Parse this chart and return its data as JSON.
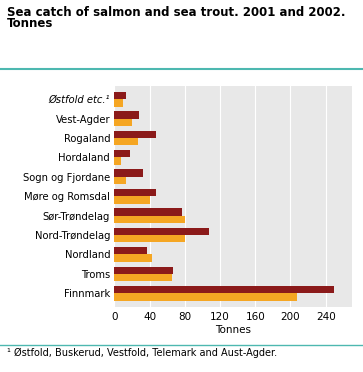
{
  "title_line1": "Sea catch of salmon and sea trout. 2001 and 2002.",
  "title_line2": "Tonnes",
  "categories": [
    "Østfold etc.¹",
    "Vest-Agder",
    "Rogaland",
    "Hordaland",
    "Sogn og Fjordane",
    "Møre og Romsdal",
    "Sør-Trøndelag",
    "Nord-Trøndelag",
    "Nordland",
    "Troms",
    "Finnmark"
  ],
  "values_2001": [
    13,
    28,
    47,
    18,
    33,
    47,
    77,
    107,
    37,
    67,
    250
  ],
  "values_2002": [
    10,
    20,
    27,
    8,
    13,
    40,
    80,
    80,
    43,
    65,
    207
  ],
  "color_2001": "#8B1A1A",
  "color_2002": "#F5A623",
  "xlabel": "Tonnes",
  "xlim": [
    0,
    270
  ],
  "xticks": [
    0,
    40,
    80,
    120,
    160,
    200,
    240
  ],
  "footnote": "¹ Østfold, Buskerud, Vestfold, Telemark and Aust-Agder.",
  "plot_bg_color": "#e8e8e8",
  "grid_color": "#ffffff",
  "teal_color": "#4DB8B0"
}
